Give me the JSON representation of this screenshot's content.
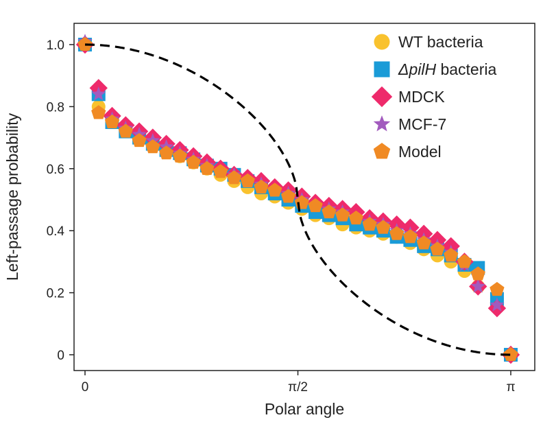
{
  "chart_data": {
    "type": "scatter",
    "title": "",
    "xlabel": "Polar angle",
    "ylabel": "Left-passage probability",
    "xlim": [
      0,
      3.1416
    ],
    "ylim": [
      0,
      1.0
    ],
    "grid": false,
    "legend_position": "top-right",
    "x_ticks": [
      {
        "value": 0,
        "label": "0"
      },
      {
        "value": 1.5708,
        "label": "π/2"
      },
      {
        "value": 3.1416,
        "label": "π"
      }
    ],
    "y_ticks": [
      {
        "value": 0,
        "label": "0"
      },
      {
        "value": 0.2,
        "label": "0.2"
      },
      {
        "value": 0.4,
        "label": "0.4"
      },
      {
        "value": 0.6,
        "label": "0.6"
      },
      {
        "value": 0.8,
        "label": "0.8"
      },
      {
        "value": 1.0,
        "label": "1.0"
      }
    ],
    "fit_curve": {
      "name": "theory",
      "color": "#000000",
      "style": "dashed"
    },
    "series": [
      {
        "name": "WT bacteria",
        "marker": "circle",
        "color": "#F9C22E",
        "x": [
          0,
          0.1,
          0.2,
          0.3,
          0.4,
          0.5,
          0.6,
          0.7,
          0.8,
          0.9,
          1.0,
          1.1,
          1.2,
          1.3,
          1.4,
          1.5,
          1.6,
          1.7,
          1.8,
          1.9,
          2.0,
          2.1,
          2.2,
          2.3,
          2.4,
          2.5,
          2.6,
          2.7,
          2.8,
          2.9,
          3.04,
          3.1416
        ],
        "y": [
          1.0,
          0.8,
          0.75,
          0.72,
          0.7,
          0.68,
          0.66,
          0.64,
          0.62,
          0.6,
          0.58,
          0.56,
          0.54,
          0.52,
          0.51,
          0.49,
          0.47,
          0.45,
          0.44,
          0.42,
          0.41,
          0.4,
          0.39,
          0.38,
          0.36,
          0.34,
          0.32,
          0.3,
          0.27,
          0.22,
          0.18,
          0.0
        ]
      },
      {
        "name": "ΔpilH bacteria",
        "name_parts": [
          "Δ",
          "pilH",
          " bacteria"
        ],
        "marker": "square",
        "color": "#1A9BD7",
        "x": [
          0,
          0.1,
          0.2,
          0.3,
          0.4,
          0.5,
          0.6,
          0.7,
          0.8,
          0.9,
          1.0,
          1.1,
          1.2,
          1.3,
          1.4,
          1.5,
          1.6,
          1.7,
          1.8,
          1.9,
          2.0,
          2.1,
          2.2,
          2.3,
          2.4,
          2.5,
          2.6,
          2.7,
          2.8,
          2.9,
          3.04,
          3.1416
        ],
        "y": [
          1.0,
          0.84,
          0.75,
          0.72,
          0.7,
          0.68,
          0.66,
          0.65,
          0.63,
          0.61,
          0.6,
          0.58,
          0.56,
          0.54,
          0.52,
          0.5,
          0.48,
          0.46,
          0.45,
          0.44,
          0.42,
          0.41,
          0.4,
          0.38,
          0.37,
          0.35,
          0.34,
          0.32,
          0.29,
          0.28,
          0.18,
          0.0
        ]
      },
      {
        "name": "MDCK",
        "marker": "diamond",
        "color": "#EE2A6B",
        "x": [
          0,
          0.1,
          0.2,
          0.3,
          0.4,
          0.5,
          0.6,
          0.7,
          0.8,
          0.9,
          1.0,
          1.1,
          1.2,
          1.3,
          1.4,
          1.5,
          1.6,
          1.7,
          1.8,
          1.9,
          2.0,
          2.1,
          2.2,
          2.3,
          2.4,
          2.5,
          2.6,
          2.7,
          2.8,
          2.9,
          3.04,
          3.1416
        ],
        "y": [
          1.0,
          0.86,
          0.77,
          0.74,
          0.72,
          0.7,
          0.68,
          0.66,
          0.64,
          0.62,
          0.6,
          0.58,
          0.57,
          0.56,
          0.54,
          0.53,
          0.51,
          0.49,
          0.48,
          0.47,
          0.46,
          0.44,
          0.43,
          0.42,
          0.41,
          0.39,
          0.37,
          0.35,
          0.3,
          0.22,
          0.15,
          0.0
        ]
      },
      {
        "name": "MCF-7",
        "marker": "star",
        "color": "#A25BBE",
        "x": [
          0,
          0.1,
          0.2,
          0.3,
          0.4,
          0.5,
          0.6,
          0.7,
          0.8,
          0.9,
          1.0,
          1.1,
          1.2,
          1.3,
          1.4,
          1.5,
          1.6,
          1.7,
          1.8,
          1.9,
          2.0,
          2.1,
          2.2,
          2.3,
          2.4,
          2.5,
          2.6,
          2.7,
          2.8,
          2.9,
          3.04,
          3.1416
        ],
        "y": [
          1.01,
          0.84,
          0.76,
          0.73,
          0.71,
          0.69,
          0.67,
          0.65,
          0.63,
          0.61,
          0.59,
          0.58,
          0.56,
          0.55,
          0.53,
          0.52,
          0.5,
          0.48,
          0.47,
          0.46,
          0.44,
          0.43,
          0.42,
          0.4,
          0.39,
          0.37,
          0.35,
          0.33,
          0.29,
          0.22,
          0.16,
          0.0
        ]
      },
      {
        "name": "Model",
        "marker": "pentagon",
        "color": "#F08A24",
        "x": [
          0,
          0.1,
          0.2,
          0.3,
          0.4,
          0.5,
          0.6,
          0.7,
          0.8,
          0.9,
          1.0,
          1.1,
          1.2,
          1.3,
          1.4,
          1.5,
          1.6,
          1.7,
          1.8,
          1.9,
          2.0,
          2.1,
          2.2,
          2.3,
          2.4,
          2.5,
          2.6,
          2.7,
          2.8,
          2.9,
          3.04,
          3.1416
        ],
        "y": [
          1.0,
          0.78,
          0.75,
          0.72,
          0.69,
          0.67,
          0.65,
          0.64,
          0.62,
          0.6,
          0.59,
          0.57,
          0.56,
          0.54,
          0.53,
          0.51,
          0.49,
          0.48,
          0.46,
          0.45,
          0.44,
          0.42,
          0.41,
          0.39,
          0.38,
          0.36,
          0.34,
          0.32,
          0.3,
          0.26,
          0.21,
          0.0
        ]
      }
    ]
  }
}
